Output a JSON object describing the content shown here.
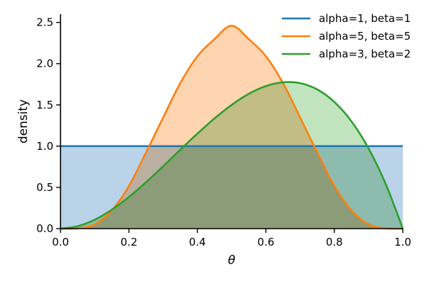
{
  "chart_data": {
    "type": "area",
    "title": "",
    "xlabel": "θ",
    "ylabel": "density",
    "xlim": [
      0.0,
      1.0
    ],
    "ylim": [
      0.0,
      2.6
    ],
    "x_ticks": [
      "0.0",
      "0.2",
      "0.4",
      "0.6",
      "0.8",
      "1.0"
    ],
    "y_ticks": [
      "0.0",
      "0.5",
      "1.0",
      "1.5",
      "2.0",
      "2.5"
    ],
    "grid": false,
    "legend_position": "top-right",
    "x": [
      0.0,
      0.05,
      0.1,
      0.15,
      0.2,
      0.25,
      0.3,
      0.35,
      0.4,
      0.45,
      0.5,
      0.55,
      0.6,
      0.65,
      0.7,
      0.75,
      0.8,
      0.85,
      0.9,
      0.95,
      1.0
    ],
    "series": [
      {
        "name": "alpha=1, beta=1",
        "color": "#1f77b4",
        "fill_color": "#bad3e8",
        "values": [
          1.0,
          1.0,
          1.0,
          1.0,
          1.0,
          1.0,
          1.0,
          1.0,
          1.0,
          1.0,
          1.0,
          1.0,
          1.0,
          1.0,
          1.0,
          1.0,
          1.0,
          1.0,
          1.0,
          1.0,
          1.0
        ]
      },
      {
        "name": "alpha=5, beta=5",
        "color": "#ff7f0e",
        "fill_color": "#ffd4b0",
        "values": [
          0.0,
          0.004,
          0.052,
          0.221,
          0.518,
          0.924,
          1.348,
          1.765,
          2.09,
          2.298,
          2.461,
          2.298,
          2.09,
          1.765,
          1.348,
          0.924,
          0.518,
          0.221,
          0.052,
          0.004,
          0.0
        ]
      },
      {
        "name": "alpha=3, beta=2",
        "color": "#2ca02c",
        "fill_color": "#c1e4bf",
        "values": [
          0.0,
          0.029,
          0.108,
          0.23,
          0.384,
          0.563,
          0.756,
          0.956,
          1.152,
          1.337,
          1.5,
          1.634,
          1.728,
          1.774,
          1.764,
          1.688,
          1.536,
          1.301,
          0.972,
          0.542,
          0.0
        ]
      }
    ]
  }
}
